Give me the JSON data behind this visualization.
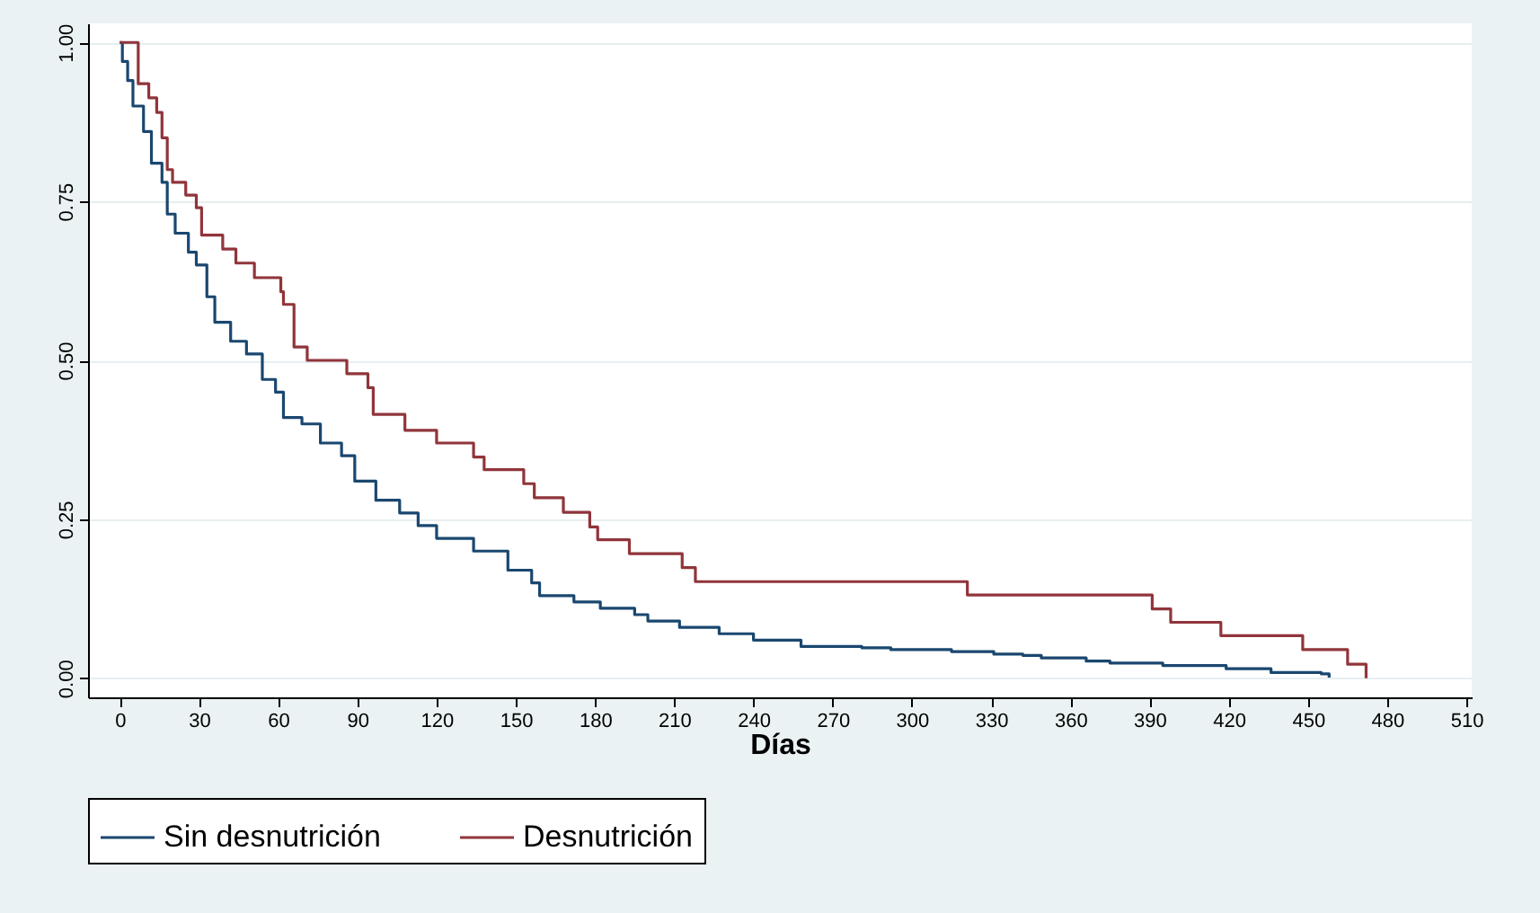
{
  "chart_data": {
    "type": "step",
    "xlabel": "Días",
    "xlim": [
      -12,
      512
    ],
    "xticks": [
      0,
      30,
      60,
      90,
      120,
      150,
      180,
      210,
      240,
      270,
      300,
      330,
      360,
      390,
      420,
      450,
      480,
      510
    ],
    "ylim": [
      -0.03,
      1.03
    ],
    "yticks": [
      {
        "value": 0,
        "label": "0.00"
      },
      {
        "value": 0.25,
        "label": "0.25"
      },
      {
        "value": 0.5,
        "label": "0.50"
      },
      {
        "value": 0.75,
        "label": "0.75"
      },
      {
        "value": 1,
        "label": "1.00"
      }
    ],
    "grid": "y",
    "legend": "bottom",
    "series": [
      {
        "name": "Sin desnutrición",
        "color": "#1a476f",
        "x": [
          0,
          1,
          3,
          5,
          9,
          12,
          16,
          18,
          21,
          26,
          29,
          33,
          36,
          42,
          48,
          54,
          59,
          62,
          69,
          76,
          84,
          89,
          97,
          106,
          113,
          120,
          134,
          147,
          156,
          159,
          172,
          182,
          195,
          200,
          212,
          227,
          240,
          258,
          281,
          292,
          315,
          331,
          342,
          349,
          366,
          375,
          395,
          419,
          436,
          455,
          458
        ],
        "values": [
          1,
          0.97,
          0.94,
          0.9,
          0.86,
          0.81,
          0.78,
          0.73,
          0.7,
          0.67,
          0.65,
          0.6,
          0.56,
          0.53,
          0.51,
          0.47,
          0.45,
          0.41,
          0.4,
          0.37,
          0.35,
          0.31,
          0.28,
          0.26,
          0.24,
          0.22,
          0.2,
          0.17,
          0.15,
          0.13,
          0.12,
          0.11,
          0.1,
          0.09,
          0.08,
          0.07,
          0.06,
          0.05,
          0.048,
          0.045,
          0.042,
          0.038,
          0.036,
          0.032,
          0.027,
          0.024,
          0.02,
          0.015,
          0.009,
          0.007,
          0.001
        ]
      },
      {
        "name": "Desnutrición",
        "color": "#90353b",
        "x": [
          0,
          7,
          11,
          14,
          16,
          18,
          20,
          25,
          29,
          31,
          39,
          44,
          51,
          61,
          62,
          66,
          71,
          86,
          94,
          96,
          108,
          120,
          134,
          138,
          153,
          157,
          168,
          178,
          181,
          193,
          213,
          218,
          321,
          391,
          398,
          417,
          448,
          465,
          472
        ],
        "values": [
          1,
          0.935,
          0.913,
          0.89,
          0.85,
          0.8,
          0.78,
          0.76,
          0.74,
          0.697,
          0.675,
          0.653,
          0.63,
          0.608,
          0.588,
          0.521,
          0.5,
          0.479,
          0.457,
          0.415,
          0.39,
          0.37,
          0.348,
          0.328,
          0.306,
          0.284,
          0.261,
          0.238,
          0.218,
          0.196,
          0.174,
          0.152,
          0.131,
          0.109,
          0.088,
          0.067,
          0.045,
          0.022,
          0
        ]
      }
    ]
  }
}
